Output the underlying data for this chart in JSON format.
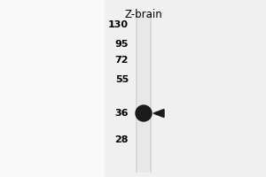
{
  "outer_bg": "#ffffff",
  "panel_bg": "#f0f0f0",
  "lane_label": "Z-brain",
  "lane_label_fontsize": 8.5,
  "mw_markers": [
    130,
    95,
    72,
    55,
    36,
    28
  ],
  "mw_fontsize": 8,
  "band_color": "#1a1a1a",
  "arrow_color": "#1a1a1a",
  "gel_lane_color": "#d8d8d8",
  "gel_lane_light_color": "#e8e8e8",
  "left_bg_color": "#f8f8f8"
}
